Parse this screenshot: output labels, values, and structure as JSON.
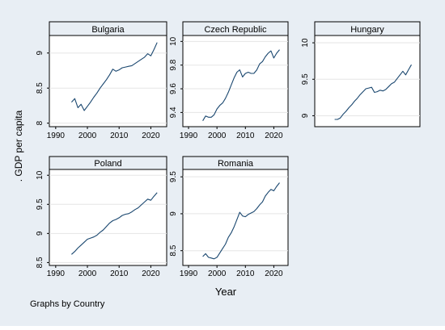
{
  "chart_data": {
    "type": "line",
    "layout": "small-multiples",
    "ylabel": ". GDP per capita",
    "xlabel": "Year",
    "note": "Graphs by Country",
    "x_ticks": [
      1990,
      2000,
      2010,
      2020
    ],
    "xlim": [
      1988,
      2025
    ],
    "grid": true,
    "colors": {
      "background_outer": "#e8eef4",
      "plot_area": "#ffffff",
      "header": "#e8eef4",
      "line": "#1a476f",
      "grid": "#e5e5e5",
      "frame": "#000000"
    },
    "panels": [
      {
        "country": "Bulgaria",
        "ylim": [
          7.95,
          9.25
        ],
        "y_ticks": [
          8,
          8.5,
          9
        ],
        "x": [
          1995,
          1996,
          1997,
          1998,
          1999,
          2000,
          2001,
          2002,
          2003,
          2004,
          2005,
          2006,
          2007,
          2008,
          2009,
          2010,
          2011,
          2012,
          2013,
          2014,
          2015,
          2016,
          2017,
          2018,
          2019,
          2020,
          2021,
          2022
        ],
        "y": [
          8.3,
          8.35,
          8.22,
          8.27,
          8.18,
          8.24,
          8.3,
          8.37,
          8.43,
          8.5,
          8.56,
          8.62,
          8.69,
          8.77,
          8.74,
          8.76,
          8.79,
          8.8,
          8.81,
          8.82,
          8.85,
          8.88,
          8.91,
          8.94,
          8.99,
          8.96,
          9.05,
          9.15
        ]
      },
      {
        "country": "Czech Republic",
        "ylim": [
          9.28,
          10.05
        ],
        "y_ticks": [
          9.4,
          9.6,
          9.8,
          10
        ],
        "x": [
          1995,
          1996,
          1997,
          1998,
          1999,
          2000,
          2001,
          2002,
          2003,
          2004,
          2005,
          2006,
          2007,
          2008,
          2009,
          2010,
          2011,
          2012,
          2013,
          2014,
          2015,
          2016,
          2017,
          2018,
          2019,
          2020,
          2021,
          2022
        ],
        "y": [
          9.33,
          9.37,
          9.36,
          9.36,
          9.38,
          9.43,
          9.46,
          9.48,
          9.52,
          9.57,
          9.63,
          9.69,
          9.74,
          9.76,
          9.7,
          9.73,
          9.74,
          9.73,
          9.73,
          9.76,
          9.81,
          9.83,
          9.87,
          9.9,
          9.92,
          9.86,
          9.9,
          9.93
        ]
      },
      {
        "country": "Hungary",
        "ylim": [
          8.85,
          10.1
        ],
        "y_ticks": [
          9,
          9.5,
          10
        ],
        "x": [
          1995,
          1996,
          1997,
          1998,
          1999,
          2000,
          2001,
          2002,
          2003,
          2004,
          2005,
          2006,
          2007,
          2008,
          2009,
          2010,
          2011,
          2012,
          2013,
          2014,
          2015,
          2016,
          2017,
          2018,
          2019,
          2020,
          2021,
          2022
        ],
        "y": [
          8.95,
          8.95,
          8.97,
          9.02,
          9.06,
          9.11,
          9.15,
          9.2,
          9.24,
          9.29,
          9.33,
          9.37,
          9.38,
          9.39,
          9.32,
          9.33,
          9.35,
          9.34,
          9.36,
          9.4,
          9.44,
          9.46,
          9.51,
          9.56,
          9.61,
          9.56,
          9.63,
          9.7
        ]
      },
      {
        "country": "Poland",
        "ylim": [
          8.45,
          10.1
        ],
        "y_ticks": [
          8.5,
          9,
          9.5,
          10
        ],
        "x": [
          1995,
          1996,
          1997,
          1998,
          1999,
          2000,
          2001,
          2002,
          2003,
          2004,
          2005,
          2006,
          2007,
          2008,
          2009,
          2010,
          2011,
          2012,
          2013,
          2014,
          2015,
          2016,
          2017,
          2018,
          2019,
          2020,
          2021,
          2022
        ],
        "y": [
          8.64,
          8.69,
          8.75,
          8.8,
          8.85,
          8.9,
          8.92,
          8.94,
          8.97,
          9.02,
          9.06,
          9.12,
          9.18,
          9.22,
          9.24,
          9.27,
          9.31,
          9.33,
          9.34,
          9.37,
          9.41,
          9.44,
          9.49,
          9.54,
          9.59,
          9.57,
          9.64,
          9.7
        ]
      },
      {
        "country": "Romania",
        "ylim": [
          8.3,
          9.6
        ],
        "y_ticks": [
          8.5,
          9,
          9.5
        ],
        "x": [
          1995,
          1996,
          1997,
          1998,
          1999,
          2000,
          2001,
          2002,
          2003,
          2004,
          2005,
          2006,
          2007,
          2008,
          2009,
          2010,
          2011,
          2012,
          2013,
          2014,
          2015,
          2016,
          2017,
          2018,
          2019,
          2020,
          2021,
          2022
        ],
        "y": [
          8.42,
          8.46,
          8.41,
          8.4,
          8.39,
          8.41,
          8.47,
          8.53,
          8.59,
          8.68,
          8.74,
          8.82,
          8.92,
          9.02,
          8.97,
          8.96,
          8.99,
          9.01,
          9.03,
          9.07,
          9.12,
          9.16,
          9.24,
          9.29,
          9.33,
          9.31,
          9.37,
          9.42
        ]
      }
    ]
  }
}
